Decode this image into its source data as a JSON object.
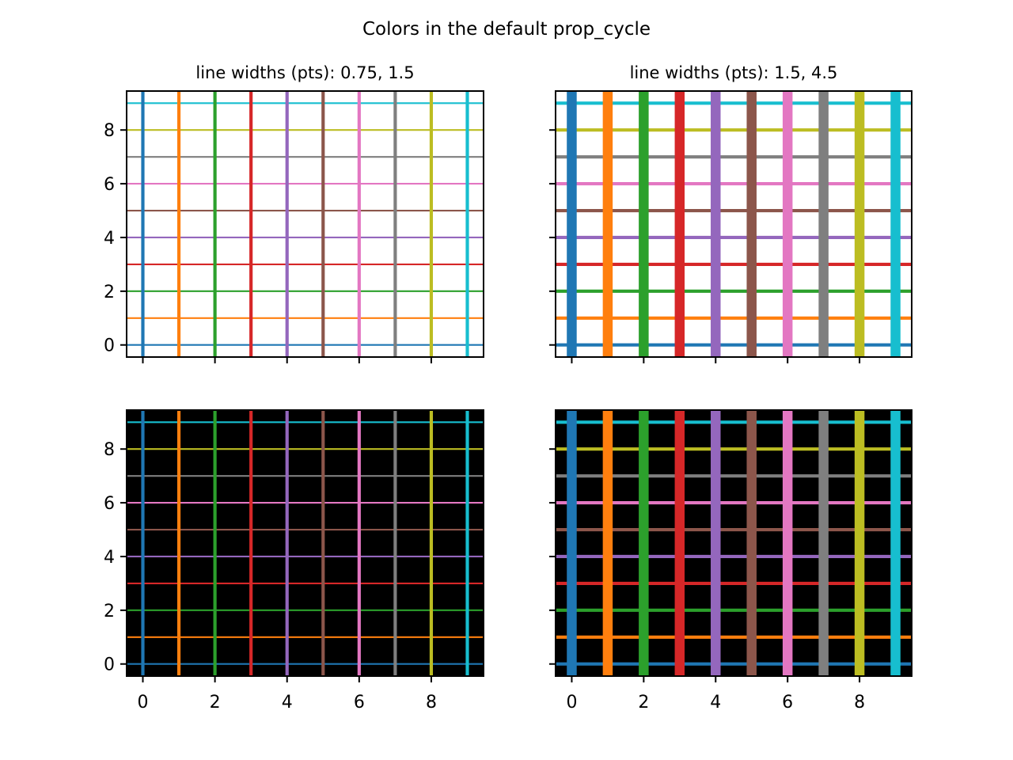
{
  "figure": {
    "suptitle": "Colors in the default prop_cycle"
  },
  "colors": [
    "#1f77b4",
    "#ff7f0e",
    "#2ca02c",
    "#d62728",
    "#9467bd",
    "#8c564b",
    "#e377c2",
    "#7f7f7f",
    "#bcbd22",
    "#17becf"
  ],
  "chart_data": [
    {
      "type": "line",
      "title": "line widths (pts): 0.75, 1.5",
      "facecolor": "#ffffff",
      "hlines_y": [
        0,
        1,
        2,
        3,
        4,
        5,
        6,
        7,
        8,
        9
      ],
      "vlines_x": [
        0,
        1,
        2,
        3,
        4,
        5,
        6,
        7,
        8,
        9
      ],
      "hline_width_pts": 0.75,
      "vline_width_pts": 1.5,
      "xlim": [
        -0.45,
        9.45
      ],
      "ylim": [
        -0.45,
        9.45
      ],
      "xticks": [
        0,
        2,
        4,
        6,
        8
      ],
      "yticks": [
        0,
        2,
        4,
        6,
        8
      ],
      "show_xticklabels": false,
      "show_yticklabels": true
    },
    {
      "type": "line",
      "title": "line widths (pts): 1.5, 4.5",
      "facecolor": "#ffffff",
      "hlines_y": [
        0,
        1,
        2,
        3,
        4,
        5,
        6,
        7,
        8,
        9
      ],
      "vlines_x": [
        0,
        1,
        2,
        3,
        4,
        5,
        6,
        7,
        8,
        9
      ],
      "hline_width_pts": 1.5,
      "vline_width_pts": 4.5,
      "xlim": [
        -0.45,
        9.45
      ],
      "ylim": [
        -0.45,
        9.45
      ],
      "xticks": [
        0,
        2,
        4,
        6,
        8
      ],
      "yticks": [
        0,
        2,
        4,
        6,
        8
      ],
      "show_xticklabels": false,
      "show_yticklabels": false
    },
    {
      "type": "line",
      "title": "",
      "facecolor": "#000000",
      "hlines_y": [
        0,
        1,
        2,
        3,
        4,
        5,
        6,
        7,
        8,
        9
      ],
      "vlines_x": [
        0,
        1,
        2,
        3,
        4,
        5,
        6,
        7,
        8,
        9
      ],
      "hline_width_pts": 0.75,
      "vline_width_pts": 1.5,
      "xlim": [
        -0.45,
        9.45
      ],
      "ylim": [
        -0.45,
        9.45
      ],
      "xticks": [
        0,
        2,
        4,
        6,
        8
      ],
      "yticks": [
        0,
        2,
        4,
        6,
        8
      ],
      "show_xticklabels": true,
      "show_yticklabels": true
    },
    {
      "type": "line",
      "title": "",
      "facecolor": "#000000",
      "hlines_y": [
        0,
        1,
        2,
        3,
        4,
        5,
        6,
        7,
        8,
        9
      ],
      "vlines_x": [
        0,
        1,
        2,
        3,
        4,
        5,
        6,
        7,
        8,
        9
      ],
      "hline_width_pts": 1.5,
      "vline_width_pts": 4.5,
      "xlim": [
        -0.45,
        9.45
      ],
      "ylim": [
        -0.45,
        9.45
      ],
      "xticks": [
        0,
        2,
        4,
        6,
        8
      ],
      "yticks": [
        0,
        2,
        4,
        6,
        8
      ],
      "show_xticklabels": true,
      "show_yticklabels": false
    }
  ]
}
